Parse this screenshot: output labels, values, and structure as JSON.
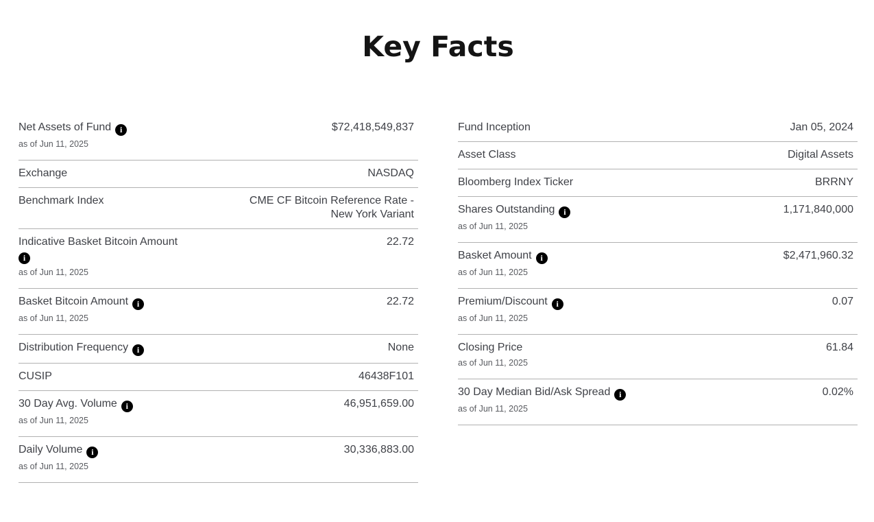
{
  "title": "Key Facts",
  "colors": {
    "text": "#3f4147",
    "muted_text": "#595b60",
    "divider": "#b1b1b1",
    "title_text": "#141414",
    "info_icon_bg": "#000000",
    "info_icon_fg": "#ffffff"
  },
  "info_icon_glyph": "i",
  "columns": {
    "left": [
      {
        "label": "Net Assets of Fund",
        "info": true,
        "as_of": "as of Jun 11, 2025",
        "value": "$72,418,549,837"
      },
      {
        "label": "Exchange",
        "value": "NASDAQ"
      },
      {
        "label": "Benchmark Index",
        "value": "CME CF Bitcoin Reference Rate - New York Variant",
        "wrap": true
      },
      {
        "label": "Indicative Basket Bitcoin Amount",
        "info": true,
        "info_break": true,
        "as_of": "as of Jun 11, 2025",
        "value": "22.72"
      },
      {
        "label": "Basket Bitcoin Amount",
        "info": true,
        "as_of": "as of Jun 11, 2025",
        "value": "22.72"
      },
      {
        "label": "Distribution Frequency",
        "info": true,
        "value": "None"
      },
      {
        "label": "CUSIP",
        "value": "46438F101"
      },
      {
        "label": "30 Day Avg. Volume",
        "info": true,
        "as_of": "as of Jun 11, 2025",
        "value": "46,951,659.00"
      },
      {
        "label": "Daily Volume",
        "info": true,
        "as_of": "as of Jun 11, 2025",
        "value": "30,336,883.00"
      }
    ],
    "right": [
      {
        "label": "Fund Inception",
        "value": "Jan 05, 2024"
      },
      {
        "label": "Asset Class",
        "value": "Digital Assets"
      },
      {
        "label": "Bloomberg Index Ticker",
        "value": "BRRNY"
      },
      {
        "label": "Shares Outstanding",
        "info": true,
        "as_of": "as of Jun 11, 2025",
        "value": "1,171,840,000"
      },
      {
        "label": "Basket Amount",
        "info": true,
        "as_of": "as of Jun 11, 2025",
        "value": "$2,471,960.32"
      },
      {
        "label": "Premium/Discount",
        "info": true,
        "as_of": "as of Jun 11, 2025",
        "value": "0.07"
      },
      {
        "label": "Closing Price",
        "as_of": "as of Jun 11, 2025",
        "value": "61.84"
      },
      {
        "label": "30 Day Median Bid/Ask Spread",
        "info": true,
        "as_of": "as of Jun 11, 2025",
        "value": "0.02%"
      }
    ]
  }
}
